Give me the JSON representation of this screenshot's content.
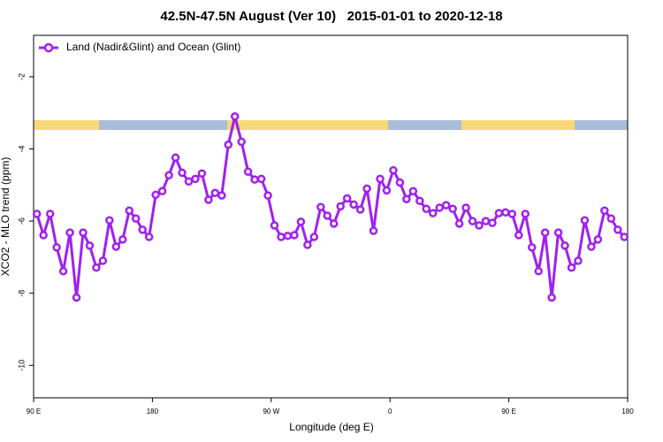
{
  "chart_data": {
    "type": "line",
    "title": "42.5N-47.5N August (Ver 10)   2015-01-01 to 2020-12-18",
    "x_label": "Longitude (deg E)",
    "y_label": "XCO2 - MLO trend (ppm)",
    "xlim": [
      90,
      540
    ],
    "ylim": [
      -10.9,
      -0.85
    ],
    "xticks": [
      {
        "value": 90,
        "label": "90 E"
      },
      180,
      {
        "value": 270,
        "label": "90 W"
      },
      {
        "value": 360,
        "label": "0"
      },
      {
        "value": 450,
        "label": "90 E"
      },
      {
        "value": 540,
        "label": "180"
      }
    ],
    "yticks": [
      -2,
      -4,
      -6,
      -8,
      -10
    ],
    "legend": "top-left",
    "x": [
      92.5,
      97.5,
      102.5,
      107.5,
      112.5,
      117.5,
      122.5,
      127.5,
      132.5,
      137.5,
      142.5,
      147.5,
      152.5,
      157.5,
      162.5,
      167.5,
      172.5,
      177.5,
      182.5,
      187.5,
      192.5,
      197.5,
      202.5,
      207.5,
      212.5,
      217.5,
      222.5,
      227.5,
      232.5,
      237.5,
      242.5,
      247.5,
      252.5,
      257.5,
      262.5,
      267.5,
      272.5,
      277.5,
      282.5,
      287.5,
      292.5,
      297.5,
      302.5,
      307.5,
      312.5,
      317.5,
      322.5,
      327.5,
      332.5,
      337.5,
      342.5,
      347.5,
      352.5,
      357.5,
      362.5,
      367.5,
      372.5,
      377.5,
      382.5,
      387.5,
      392.5,
      397.5,
      402.5,
      407.5,
      412.5,
      417.5,
      422.5,
      427.5,
      432.5,
      437.5,
      442.5,
      447.5,
      452.5,
      457.5,
      462.5,
      467.5,
      472.5,
      477.5,
      482.5,
      487.5,
      492.5,
      497.5,
      502.5,
      507.5,
      512.5,
      517.5,
      522.5,
      527.5,
      532.5,
      537.5
    ],
    "series": [
      {
        "name": "Land (Nadir&Glint) and Ocean (Glint)",
        "color": "#a020f0",
        "values": [
          -5.8,
          -6.39,
          -5.8,
          -6.73,
          -7.39,
          -6.32,
          -8.12,
          -6.32,
          -6.68,
          -7.29,
          -7.1,
          -5.98,
          -6.71,
          -6.51,
          -5.71,
          -5.93,
          -6.24,
          -6.44,
          -5.27,
          -5.17,
          -4.73,
          -4.24,
          -4.66,
          -4.9,
          -4.83,
          -4.68,
          -5.41,
          -5.22,
          -5.29,
          -3.88,
          -3.1,
          -3.8,
          -4.63,
          -4.85,
          -4.83,
          -5.29,
          -6.12,
          -6.44,
          -6.41,
          -6.39,
          -6.02,
          -6.66,
          -6.44,
          -5.61,
          -5.85,
          -6.07,
          -5.59,
          -5.37,
          -5.54,
          -5.68,
          -5.1,
          -6.27,
          -4.83,
          -5.15,
          -4.59,
          -4.93,
          -5.39,
          -5.17,
          -5.44,
          -5.66,
          -5.78,
          -5.63,
          -5.56,
          -5.66,
          -6.07,
          -5.63,
          -6.0,
          -6.12,
          -6.0,
          -6.05,
          -5.78,
          -5.76,
          -5.8,
          -6.39,
          -5.8,
          -6.73,
          -7.39,
          -6.32,
          -8.12,
          -6.32,
          -6.68,
          -7.29,
          -7.1,
          -5.98,
          -6.71,
          -6.51,
          -5.71,
          -5.93,
          -6.24,
          -6.44
        ]
      }
    ]
  }
}
